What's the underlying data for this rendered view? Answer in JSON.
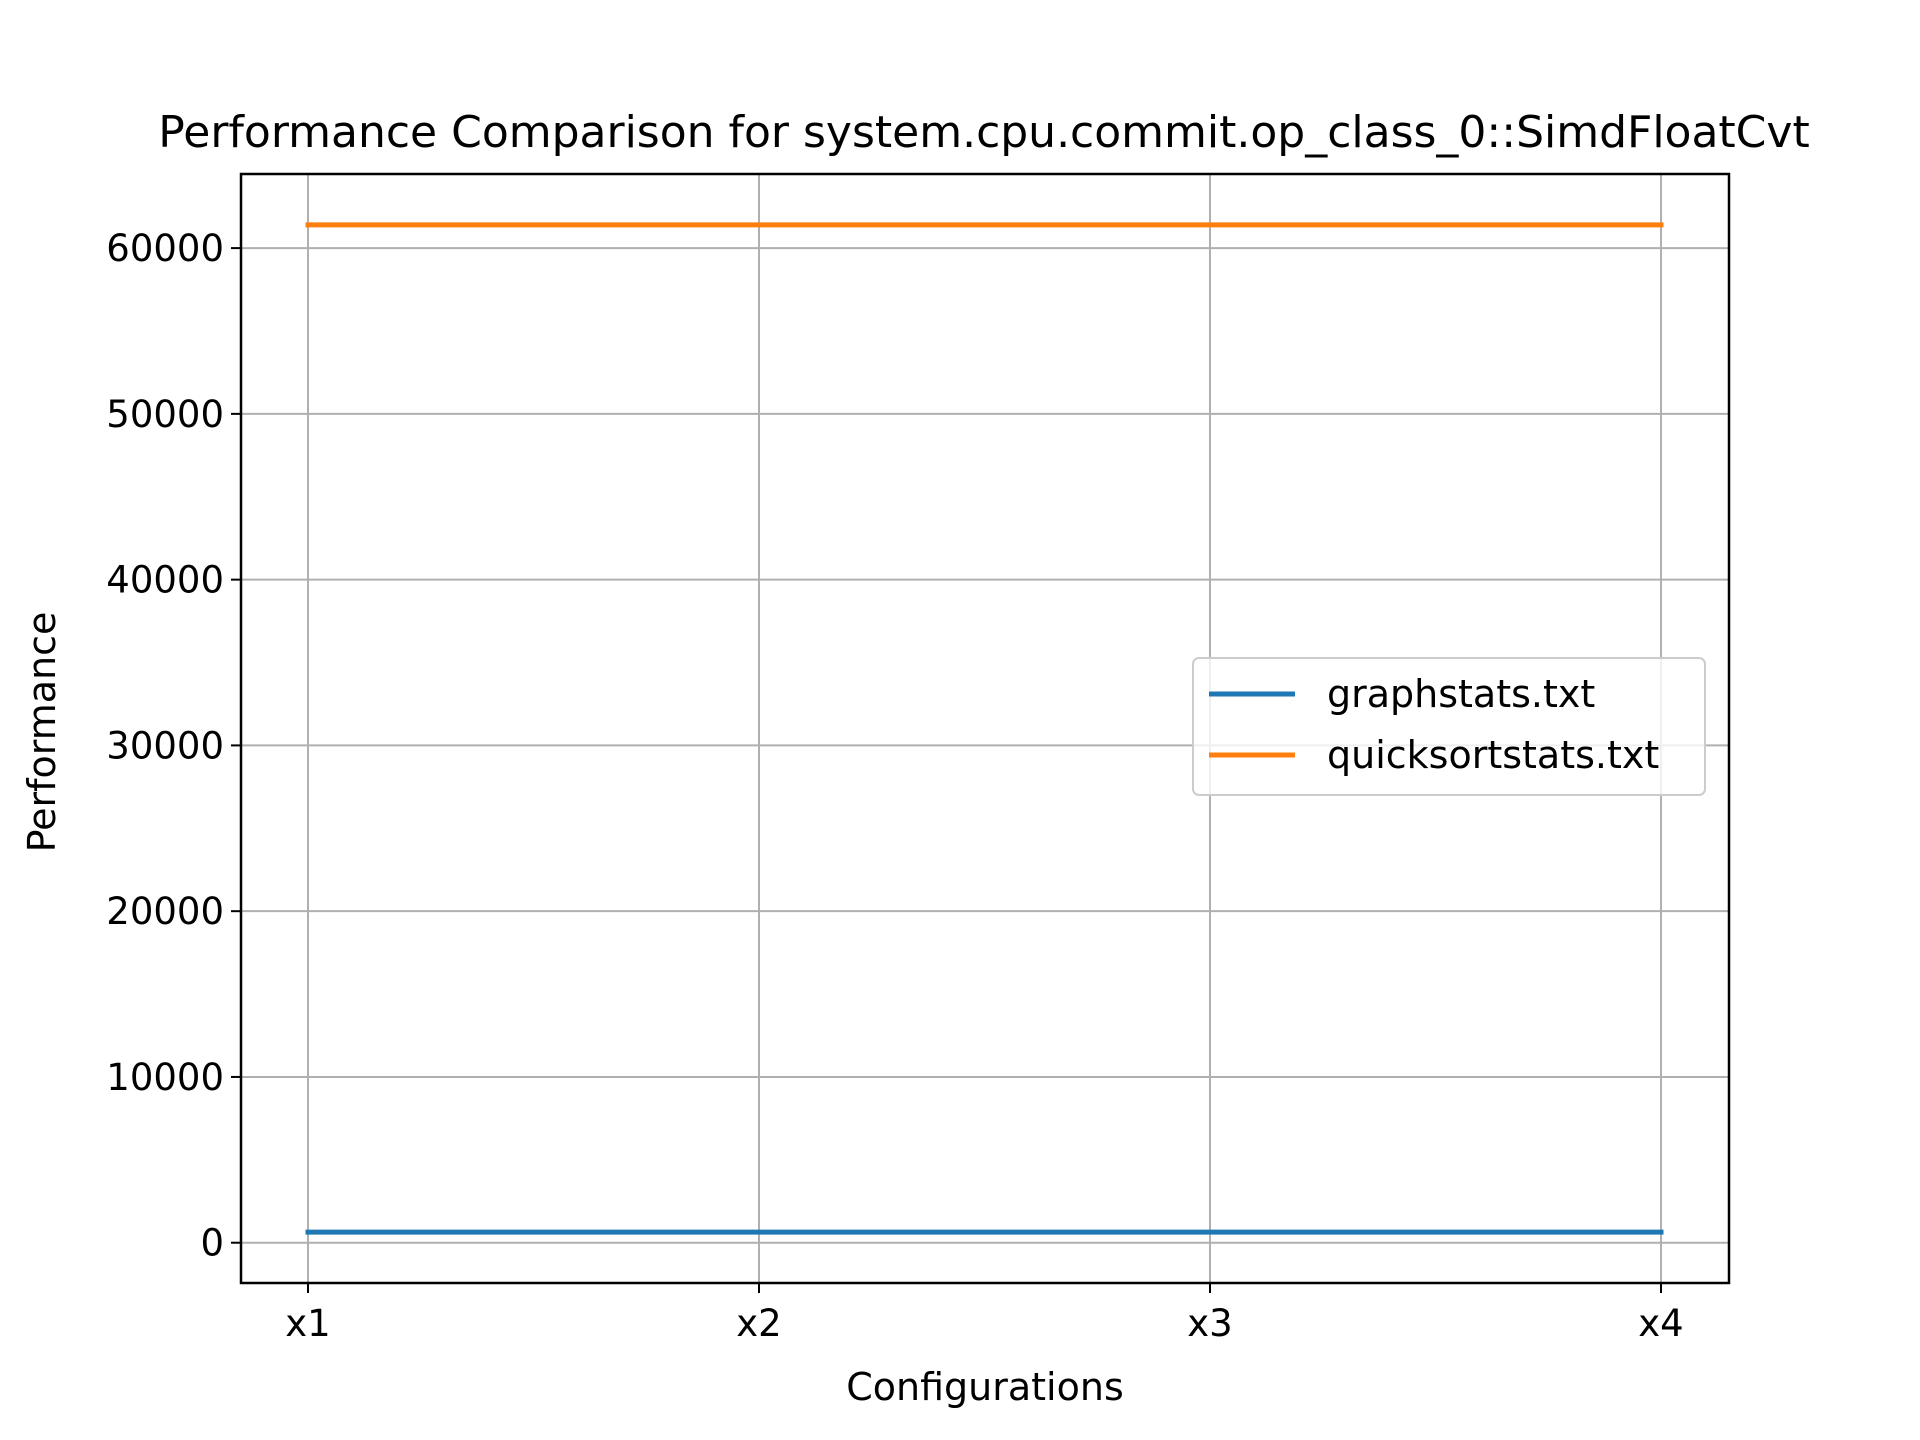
{
  "chart_data": {
    "type": "line",
    "title": "Performance Comparison for system.cpu.commit.op_class_0::SimdFloatCvt",
    "xlabel": "Configurations",
    "ylabel": "Performance",
    "categories": [
      "x1",
      "x2",
      "x3",
      "x4"
    ],
    "series": [
      {
        "name": "graphstats.txt",
        "color": "#1f77b4",
        "values": [
          640,
          640,
          640,
          640
        ]
      },
      {
        "name": "quicksortstats.txt",
        "color": "#ff7f0e",
        "values": [
          61400,
          61400,
          61400,
          61400
        ]
      }
    ],
    "yticks": [
      0,
      10000,
      20000,
      30000,
      40000,
      50000,
      60000
    ],
    "ylim": [
      -2430,
      64470
    ],
    "grid": true,
    "legend_position": "center-right"
  }
}
